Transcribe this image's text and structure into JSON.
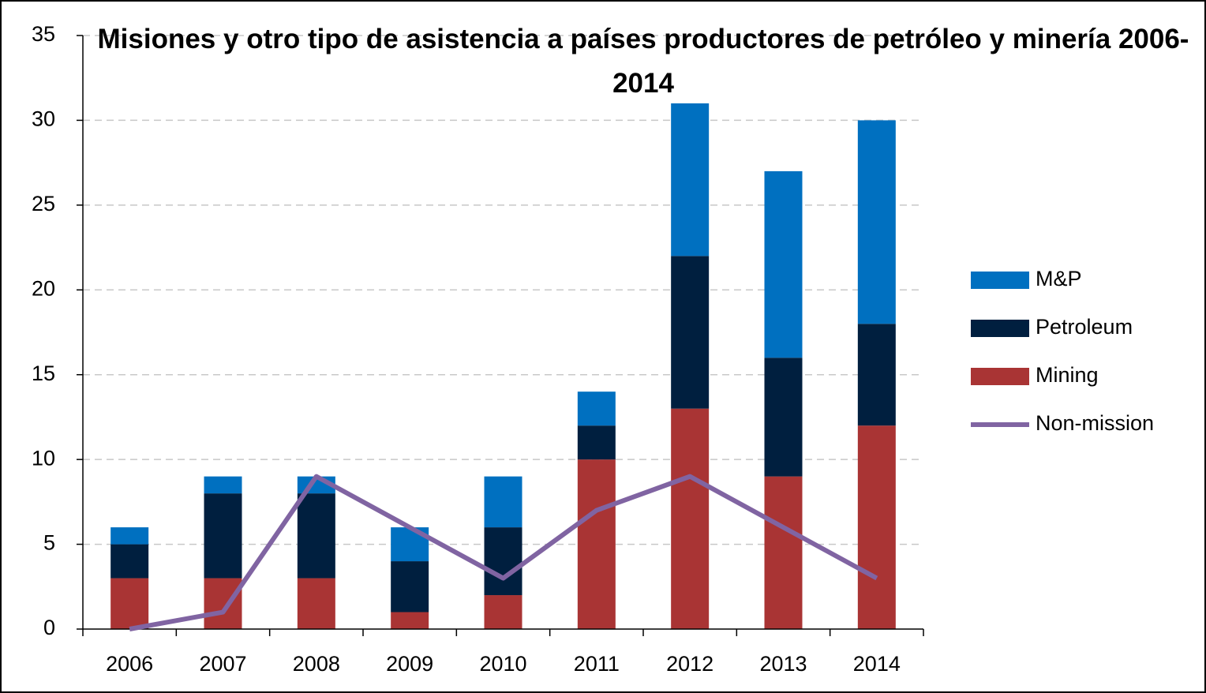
{
  "chart_data": {
    "type": "bar+line",
    "stacked": true,
    "title": "Misiones y otro tipo de asistencia a países productores de petróleo y minería 2006-2014",
    "categories": [
      "2006",
      "2007",
      "2008",
      "2009",
      "2010",
      "2011",
      "2012",
      "2013",
      "2014"
    ],
    "series": [
      {
        "name": "Mining",
        "type": "bar",
        "color": "#a93434",
        "values": [
          3,
          3,
          3,
          1,
          2,
          10,
          13,
          9,
          12
        ]
      },
      {
        "name": "Petroleum",
        "type": "bar",
        "color": "#001f3f",
        "values": [
          2,
          5,
          5,
          3,
          4,
          2,
          9,
          7,
          6
        ]
      },
      {
        "name": "M&P",
        "type": "bar",
        "color": "#0070c0",
        "values": [
          1,
          1,
          1,
          2,
          3,
          2,
          9,
          11,
          12
        ]
      },
      {
        "name": "Non-mission",
        "type": "line",
        "color": "#8064a2",
        "values": [
          0,
          1,
          9,
          6,
          3,
          7,
          9,
          6,
          3
        ]
      }
    ],
    "ylim": [
      0,
      35
    ],
    "yticks": [
      0,
      5,
      10,
      15,
      20,
      25,
      30,
      35
    ],
    "grid": true,
    "legend_position": "right"
  }
}
